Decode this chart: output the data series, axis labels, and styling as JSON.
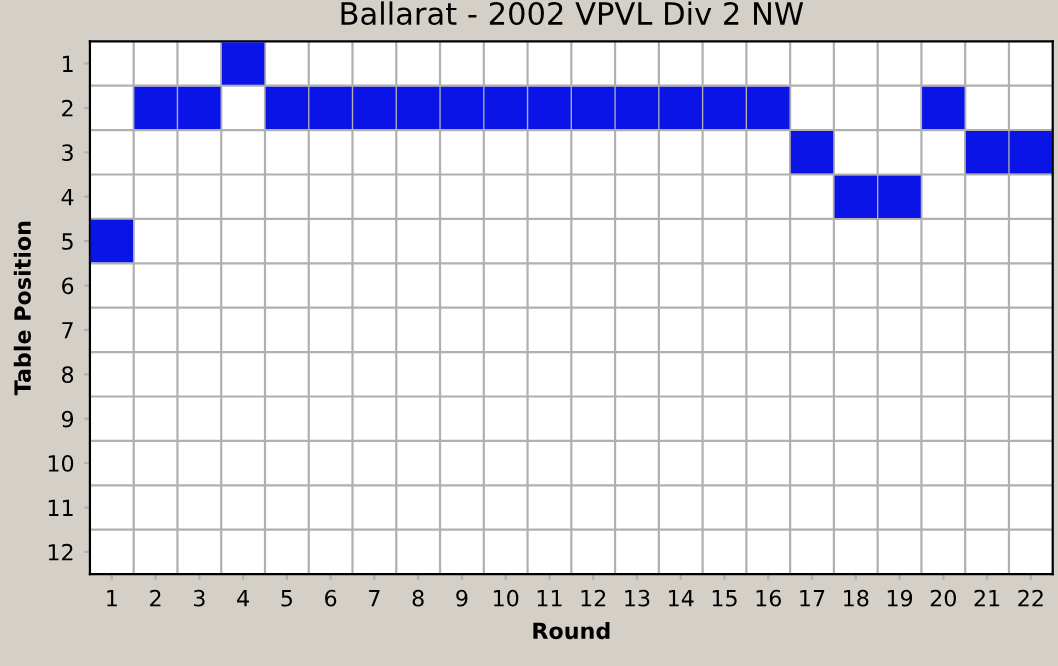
{
  "chart_data": {
    "type": "scatter",
    "title": "Ballarat - 2002 VPVL Div 2 NW",
    "xlabel": "Round",
    "ylabel": "Table Position",
    "categories": [
      "1",
      "2",
      "3",
      "4",
      "5",
      "6",
      "7",
      "8",
      "9",
      "10",
      "11",
      "12",
      "13",
      "14",
      "15",
      "16",
      "17",
      "18",
      "19",
      "20",
      "21",
      "22"
    ],
    "series": [
      {
        "color": "#0a14e6",
        "values": [
          5,
          2,
          2,
          1,
          2,
          2,
          2,
          2,
          2,
          2,
          2,
          2,
          2,
          2,
          2,
          2,
          3,
          4,
          4,
          2,
          3,
          3
        ]
      }
    ],
    "ylim": [
      12.5,
      0.5
    ],
    "yticks": [
      1,
      2,
      3,
      4,
      5,
      6,
      7,
      8,
      9,
      10,
      11,
      12
    ],
    "marker": "square",
    "grid": true,
    "legend": false
  }
}
